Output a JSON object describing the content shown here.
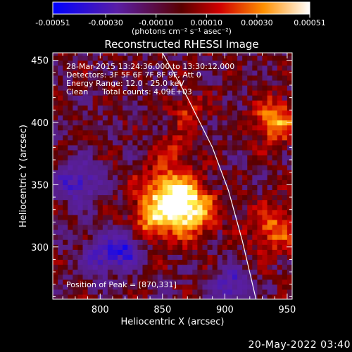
{
  "chart_data": {
    "type": "heatmap",
    "title": "Reconstructed RHESSI Image",
    "xlabel": "Heliocentric X (arcsec)",
    "ylabel": "Heliocentric Y (arcsec)",
    "xlim": [
      762,
      954
    ],
    "ylim": [
      258,
      456
    ],
    "xticks": [
      "800",
      "850",
      "900",
      "950"
    ],
    "xtick_values": [
      800,
      850,
      900,
      950
    ],
    "yticks": [
      "300",
      "350",
      "400",
      "450"
    ],
    "ytick_values": [
      300,
      350,
      400,
      450
    ],
    "colorbar": {
      "min": -0.00051,
      "max": 0.00051,
      "ticks": [
        "-0.00051",
        "-0.00030",
        "-0.00010",
        "0.00010",
        "0.00030",
        "0.00051"
      ],
      "tick_values": [
        -0.00051,
        -0.0003,
        -0.0001,
        0.0001,
        0.0003,
        0.00051
      ],
      "units": "(photons cm⁻² s⁻¹ asec⁻²)",
      "colormap": "blue-purple-red-yellow-white"
    },
    "annotations": {
      "time": "28-Mar-2015 13:24:36.000 to 13:30:12.000",
      "detectors": "Detectors: 3F 5F 6F 7F 8F 9F, Att 0",
      "energy": "Energy Range: 12.0 - 25.0 keV",
      "clean": "Clean",
      "counts": "Total counts: 4.09E+03",
      "peak": "Position of Peak = [870,331]"
    },
    "peak": [
      870,
      331
    ],
    "limb_curve": [
      [
        850,
        456
      ],
      [
        870,
        420
      ],
      [
        890,
        380
      ],
      [
        903,
        345
      ],
      [
        914,
        305
      ],
      [
        925,
        258
      ]
    ],
    "hotspots": [
      {
        "x": 870,
        "y": 331,
        "amp": 1.0,
        "sigma": 15
      },
      {
        "x": 852,
        "y": 344,
        "amp": 0.7,
        "sigma": 15
      },
      {
        "x": 838,
        "y": 318,
        "amp": 0.5,
        "sigma": 12
      },
      {
        "x": 940,
        "y": 402,
        "amp": 0.75,
        "sigma": 12
      },
      {
        "x": 940,
        "y": 315,
        "amp": 0.55,
        "sigma": 14
      },
      {
        "x": 870,
        "y": 410,
        "amp": 0.4,
        "sigma": 9
      },
      {
        "x": 860,
        "y": 380,
        "amp": 0.35,
        "sigma": 9
      }
    ],
    "coldspots": [
      {
        "x": 820,
        "y": 300,
        "amp": -0.75,
        "sigma": 10
      },
      {
        "x": 782,
        "y": 352,
        "amp": -0.6,
        "sigma": 12
      },
      {
        "x": 800,
        "y": 290,
        "amp": -0.5,
        "sigma": 10
      },
      {
        "x": 905,
        "y": 270,
        "amp": -0.55,
        "sigma": 10
      }
    ]
  },
  "footer": {
    "timestamp": "20-May-2022 03:40"
  }
}
